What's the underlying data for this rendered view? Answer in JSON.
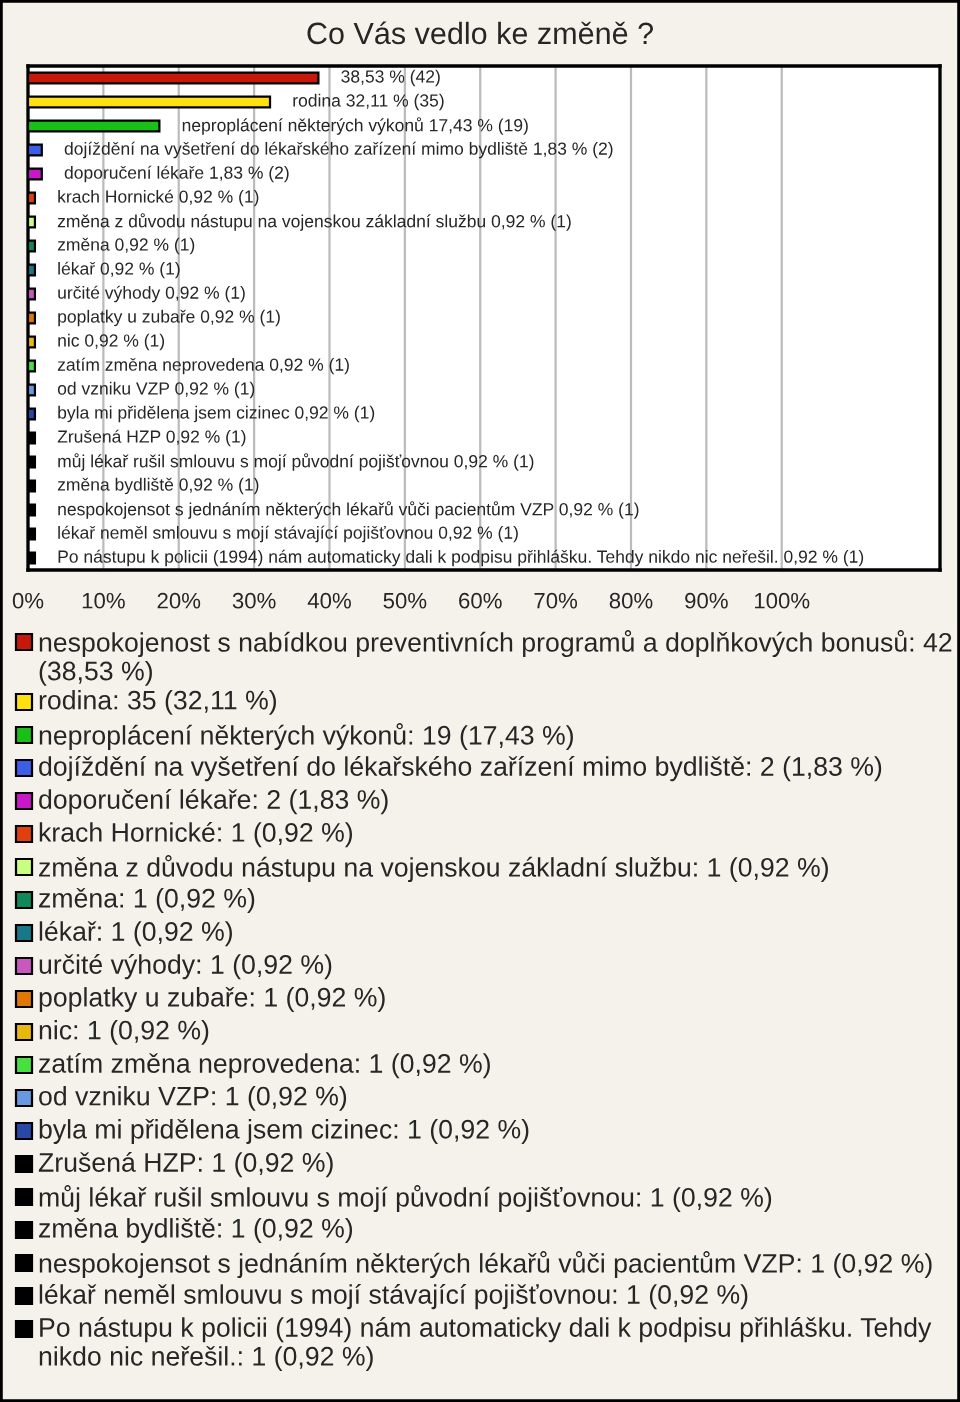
{
  "chart_data": {
    "type": "bar",
    "orientation": "horizontal",
    "title": "Co Vás vedlo ke změně ?",
    "categories": [
      null,
      null,
      null,
      null,
      null,
      null,
      null,
      null,
      null,
      null,
      null,
      null,
      null,
      null,
      null,
      null,
      null,
      null,
      null,
      null,
      null
    ],
    "xlim": [
      0,
      121
    ],
    "xticks": [
      {
        "value": 0,
        "label": "0%"
      },
      {
        "value": 10,
        "label": "10%"
      },
      {
        "value": 20,
        "label": "20%"
      },
      {
        "value": 30,
        "label": "30%"
      },
      {
        "value": 40,
        "label": "40%"
      },
      {
        "value": 50,
        "label": "50%"
      },
      {
        "value": 60,
        "label": "60%"
      },
      {
        "value": 70,
        "label": "70%"
      },
      {
        "value": 80,
        "label": "80%"
      },
      {
        "value": 90,
        "label": "90%"
      },
      {
        "value": 100,
        "label": "100%"
      }
    ],
    "tick_labels": "x",
    "grid": "x",
    "legend": "bottom",
    "series": [
      {
        "name": "nespokojenost s nabídkou preventivních programů a doplňkových bonusů: 42 (38,53 %)",
        "color": "#c8180c",
        "values": [
          38.53,
          null,
          null,
          null,
          null,
          null,
          null,
          null,
          null,
          null,
          null,
          null,
          null,
          null,
          null,
          null,
          null,
          null,
          null,
          null,
          null
        ],
        "value_labels": [
          "38,53 % (42)",
          null,
          null,
          null,
          null,
          null,
          null,
          null,
          null,
          null,
          null,
          null,
          null,
          null,
          null,
          null,
          null,
          null,
          null,
          null,
          null
        ]
      },
      {
        "name": "rodina: 35 (32,11 %)",
        "color": "#ffe010",
        "values": [
          null,
          32.11,
          null,
          null,
          null,
          null,
          null,
          null,
          null,
          null,
          null,
          null,
          null,
          null,
          null,
          null,
          null,
          null,
          null,
          null,
          null
        ],
        "value_labels": [
          null,
          "rodina 32,11 % (35)",
          null,
          null,
          null,
          null,
          null,
          null,
          null,
          null,
          null,
          null,
          null,
          null,
          null,
          null,
          null,
          null,
          null,
          null,
          null
        ]
      },
      {
        "name": "neproplácení některých výkonů: 19 (17,43 %)",
        "color": "#18c018",
        "values": [
          null,
          null,
          17.43,
          null,
          null,
          null,
          null,
          null,
          null,
          null,
          null,
          null,
          null,
          null,
          null,
          null,
          null,
          null,
          null,
          null,
          null
        ],
        "value_labels": [
          null,
          null,
          "neproplácení některých výkonů 17,43 % (19)",
          null,
          null,
          null,
          null,
          null,
          null,
          null,
          null,
          null,
          null,
          null,
          null,
          null,
          null,
          null,
          null,
          null,
          null
        ]
      },
      {
        "name": "dojíždění na vyšetření do lékařského zařízení mimo bydliště: 2 (1,83 %)",
        "color": "#3a5ee8",
        "values": [
          null,
          null,
          null,
          1.83,
          null,
          null,
          null,
          null,
          null,
          null,
          null,
          null,
          null,
          null,
          null,
          null,
          null,
          null,
          null,
          null,
          null
        ],
        "value_labels": [
          null,
          null,
          null,
          "dojíždění na vyšetření do lékařského zařízení mimo bydliště 1,83 % (2)",
          null,
          null,
          null,
          null,
          null,
          null,
          null,
          null,
          null,
          null,
          null,
          null,
          null,
          null,
          null,
          null,
          null
        ]
      },
      {
        "name": "doporučení lékaře: 2 (1,83 %)",
        "color": "#c818c8",
        "values": [
          null,
          null,
          null,
          null,
          1.83,
          null,
          null,
          null,
          null,
          null,
          null,
          null,
          null,
          null,
          null,
          null,
          null,
          null,
          null,
          null,
          null
        ],
        "value_labels": [
          null,
          null,
          null,
          null,
          "doporučení lékaře 1,83 % (2)",
          null,
          null,
          null,
          null,
          null,
          null,
          null,
          null,
          null,
          null,
          null,
          null,
          null,
          null,
          null,
          null
        ]
      },
      {
        "name": "krach Hornické: 1 (0,92 %)",
        "color": "#e04010",
        "values": [
          null,
          null,
          null,
          null,
          null,
          0.92,
          null,
          null,
          null,
          null,
          null,
          null,
          null,
          null,
          null,
          null,
          null,
          null,
          null,
          null,
          null
        ],
        "value_labels": [
          null,
          null,
          null,
          null,
          null,
          "krach Hornické 0,92 % (1)",
          null,
          null,
          null,
          null,
          null,
          null,
          null,
          null,
          null,
          null,
          null,
          null,
          null,
          null,
          null
        ]
      },
      {
        "name": "změna z důvodu nástupu na vojenskou základní službu: 1 (0,92 %)",
        "color": "#c8ff80",
        "values": [
          null,
          null,
          null,
          null,
          null,
          null,
          0.92,
          null,
          null,
          null,
          null,
          null,
          null,
          null,
          null,
          null,
          null,
          null,
          null,
          null,
          null
        ],
        "value_labels": [
          null,
          null,
          null,
          null,
          null,
          null,
          "změna z důvodu nástupu na vojenskou základní službu 0,92 % (1)",
          null,
          null,
          null,
          null,
          null,
          null,
          null,
          null,
          null,
          null,
          null,
          null,
          null,
          null
        ]
      },
      {
        "name": "změna: 1 (0,92 %)",
        "color": "#108858",
        "values": [
          null,
          null,
          null,
          null,
          null,
          null,
          null,
          0.92,
          null,
          null,
          null,
          null,
          null,
          null,
          null,
          null,
          null,
          null,
          null,
          null,
          null
        ],
        "value_labels": [
          null,
          null,
          null,
          null,
          null,
          null,
          null,
          "změna 0,92 % (1)",
          null,
          null,
          null,
          null,
          null,
          null,
          null,
          null,
          null,
          null,
          null,
          null,
          null
        ]
      },
      {
        "name": "lékař: 1 (0,92 %)",
        "color": "#187888",
        "values": [
          null,
          null,
          null,
          null,
          null,
          null,
          null,
          null,
          0.92,
          null,
          null,
          null,
          null,
          null,
          null,
          null,
          null,
          null,
          null,
          null,
          null
        ],
        "value_labels": [
          null,
          null,
          null,
          null,
          null,
          null,
          null,
          null,
          "lékař 0,92 % (1)",
          null,
          null,
          null,
          null,
          null,
          null,
          null,
          null,
          null,
          null,
          null,
          null
        ]
      },
      {
        "name": "určité výhody: 1 (0,92 %)",
        "color": "#c858c0",
        "values": [
          null,
          null,
          null,
          null,
          null,
          null,
          null,
          null,
          null,
          0.92,
          null,
          null,
          null,
          null,
          null,
          null,
          null,
          null,
          null,
          null,
          null
        ],
        "value_labels": [
          null,
          null,
          null,
          null,
          null,
          null,
          null,
          null,
          null,
          "určité výhody 0,92 % (1)",
          null,
          null,
          null,
          null,
          null,
          null,
          null,
          null,
          null,
          null,
          null
        ]
      },
      {
        "name": "poplatky u zubaře: 1 (0,92 %)",
        "color": "#e07808",
        "values": [
          null,
          null,
          null,
          null,
          null,
          null,
          null,
          null,
          null,
          null,
          0.92,
          null,
          null,
          null,
          null,
          null,
          null,
          null,
          null,
          null,
          null
        ],
        "value_labels": [
          null,
          null,
          null,
          null,
          null,
          null,
          null,
          null,
          null,
          null,
          "poplatky u zubaře 0,92 % (1)",
          null,
          null,
          null,
          null,
          null,
          null,
          null,
          null,
          null,
          null
        ]
      },
      {
        "name": "nic: 1 (0,92 %)",
        "color": "#e8b810",
        "values": [
          null,
          null,
          null,
          null,
          null,
          null,
          null,
          null,
          null,
          null,
          null,
          0.92,
          null,
          null,
          null,
          null,
          null,
          null,
          null,
          null,
          null
        ],
        "value_labels": [
          null,
          null,
          null,
          null,
          null,
          null,
          null,
          null,
          null,
          null,
          null,
          "nic 0,92 % (1)",
          null,
          null,
          null,
          null,
          null,
          null,
          null,
          null,
          null
        ]
      },
      {
        "name": "zatím změna neprovedena: 1 (0,92 %)",
        "color": "#48e040",
        "values": [
          null,
          null,
          null,
          null,
          null,
          null,
          null,
          null,
          null,
          null,
          null,
          null,
          0.92,
          null,
          null,
          null,
          null,
          null,
          null,
          null,
          null
        ],
        "value_labels": [
          null,
          null,
          null,
          null,
          null,
          null,
          null,
          null,
          null,
          null,
          null,
          null,
          "zatím změna neprovedena 0,92 % (1)",
          null,
          null,
          null,
          null,
          null,
          null,
          null,
          null
        ]
      },
      {
        "name": "od vzniku VZP: 1 (0,92 %)",
        "color": "#6898e0",
        "values": [
          null,
          null,
          null,
          null,
          null,
          null,
          null,
          null,
          null,
          null,
          null,
          null,
          null,
          0.92,
          null,
          null,
          null,
          null,
          null,
          null,
          null
        ],
        "value_labels": [
          null,
          null,
          null,
          null,
          null,
          null,
          null,
          null,
          null,
          null,
          null,
          null,
          null,
          "od vzniku VZP 0,92 % (1)",
          null,
          null,
          null,
          null,
          null,
          null,
          null
        ]
      },
      {
        "name": "byla mi přidělena jsem cizinec: 1 (0,92 %)",
        "color": "#2848a8",
        "values": [
          null,
          null,
          null,
          null,
          null,
          null,
          null,
          null,
          null,
          null,
          null,
          null,
          null,
          null,
          0.92,
          null,
          null,
          null,
          null,
          null,
          null
        ],
        "value_labels": [
          null,
          null,
          null,
          null,
          null,
          null,
          null,
          null,
          null,
          null,
          null,
          null,
          null,
          null,
          "byla mi přidělena jsem cizinec 0,92 % (1)",
          null,
          null,
          null,
          null,
          null,
          null
        ]
      },
      {
        "name": "Zrušená HZP: 1 (0,92 %)",
        "color": "#000000",
        "values": [
          null,
          null,
          null,
          null,
          null,
          null,
          null,
          null,
          null,
          null,
          null,
          null,
          null,
          null,
          null,
          0.92,
          null,
          null,
          null,
          null,
          null
        ],
        "value_labels": [
          null,
          null,
          null,
          null,
          null,
          null,
          null,
          null,
          null,
          null,
          null,
          null,
          null,
          null,
          null,
          "Zrušená HZP 0,92 % (1)",
          null,
          null,
          null,
          null,
          null
        ]
      },
      {
        "name": "můj lékař rušil smlouvu s mojí původní pojišťovnou: 1 (0,92 %)",
        "color": "#000000",
        "values": [
          null,
          null,
          null,
          null,
          null,
          null,
          null,
          null,
          null,
          null,
          null,
          null,
          null,
          null,
          null,
          null,
          0.92,
          null,
          null,
          null,
          null
        ],
        "value_labels": [
          null,
          null,
          null,
          null,
          null,
          null,
          null,
          null,
          null,
          null,
          null,
          null,
          null,
          null,
          null,
          null,
          "můj lékař rušil smlouvu s mojí původní pojišťovnou 0,92 % (1)",
          null,
          null,
          null,
          null
        ]
      },
      {
        "name": "změna bydliště: 1 (0,92 %)",
        "color": "#000000",
        "values": [
          null,
          null,
          null,
          null,
          null,
          null,
          null,
          null,
          null,
          null,
          null,
          null,
          null,
          null,
          null,
          null,
          null,
          0.92,
          null,
          null,
          null
        ],
        "value_labels": [
          null,
          null,
          null,
          null,
          null,
          null,
          null,
          null,
          null,
          null,
          null,
          null,
          null,
          null,
          null,
          null,
          null,
          "změna bydliště 0,92 % (1)",
          null,
          null,
          null
        ]
      },
      {
        "name": "nespokojensot s jednáním některých lékařů vůči pacientům VZP: 1 (0,92 %)",
        "color": "#000000",
        "values": [
          null,
          null,
          null,
          null,
          null,
          null,
          null,
          null,
          null,
          null,
          null,
          null,
          null,
          null,
          null,
          null,
          null,
          null,
          0.92,
          null,
          null
        ],
        "value_labels": [
          null,
          null,
          null,
          null,
          null,
          null,
          null,
          null,
          null,
          null,
          null,
          null,
          null,
          null,
          null,
          null,
          null,
          null,
          "nespokojensot s jednáním některých lékařů vůči pacientům VZP 0,92 % (1)",
          null,
          null
        ]
      },
      {
        "name": "lékař neměl smlouvu s mojí stávající pojišťovnou: 1 (0,92 %)",
        "color": "#000000",
        "values": [
          null,
          null,
          null,
          null,
          null,
          null,
          null,
          null,
          null,
          null,
          null,
          null,
          null,
          null,
          null,
          null,
          null,
          null,
          null,
          0.92,
          null
        ],
        "value_labels": [
          null,
          null,
          null,
          null,
          null,
          null,
          null,
          null,
          null,
          null,
          null,
          null,
          null,
          null,
          null,
          null,
          null,
          null,
          null,
          "lékař neměl smlouvu s mojí stávající pojišťovnou 0,92 % (1)",
          null
        ]
      },
      {
        "name": "Po nástupu k policii (1994) nám automaticky dali k podpisu přihlášku. Tehdy nikdo nic neřešil.: 1 (0,92 %)",
        "color": "#000000",
        "values": [
          null,
          null,
          null,
          null,
          null,
          null,
          null,
          null,
          null,
          null,
          null,
          null,
          null,
          null,
          null,
          null,
          null,
          null,
          null,
          null,
          0.92
        ],
        "value_labels": [
          null,
          null,
          null,
          null,
          null,
          null,
          null,
          null,
          null,
          null,
          null,
          null,
          null,
          null,
          null,
          null,
          null,
          null,
          null,
          null,
          "Po nástupu k policii (1994) nám automaticky dali k podpisu přihlášku. Tehdy nikdo nic neřešil. 0,92 % (1)"
        ]
      }
    ]
  }
}
